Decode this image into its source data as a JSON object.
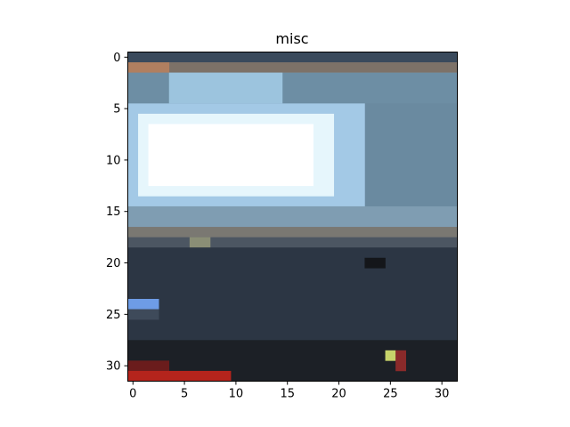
{
  "chart_data": {
    "type": "heatmap",
    "title": "misc",
    "xlabel": "",
    "ylabel": "",
    "grid": false,
    "rows": 32,
    "cols": 32,
    "xticks": [
      0,
      5,
      10,
      15,
      20,
      25,
      30
    ],
    "yticks": [
      0,
      5,
      10,
      15,
      20,
      25,
      30
    ],
    "xlim": [
      -0.5,
      31.5
    ],
    "ylim": [
      31.5,
      -0.5
    ],
    "image_regions": [
      {
        "rows": [
          0,
          0
        ],
        "cols": [
          0,
          31
        ],
        "color": "#3a4a5c"
      },
      {
        "rows": [
          1,
          1
        ],
        "cols": [
          0,
          31
        ],
        "color": "#7d7268"
      },
      {
        "rows": [
          1,
          1
        ],
        "cols": [
          0,
          3
        ],
        "color": "#b07f60"
      },
      {
        "rows": [
          2,
          4
        ],
        "cols": [
          0,
          31
        ],
        "color": "#6d8ea4"
      },
      {
        "rows": [
          2,
          4
        ],
        "cols": [
          4,
          14
        ],
        "color": "#9cc4de"
      },
      {
        "rows": [
          5,
          16
        ],
        "cols": [
          0,
          31
        ],
        "color": "#6a8aa0"
      },
      {
        "rows": [
          5,
          14
        ],
        "cols": [
          0,
          22
        ],
        "color": "#a3c9e6"
      },
      {
        "rows": [
          6,
          13
        ],
        "cols": [
          1,
          19
        ],
        "color": "#e6f6fc"
      },
      {
        "rows": [
          7,
          12
        ],
        "cols": [
          2,
          17
        ],
        "color": "#ffffff"
      },
      {
        "rows": [
          15,
          16
        ],
        "cols": [
          0,
          31
        ],
        "color": "#7f9db2"
      },
      {
        "rows": [
          17,
          17
        ],
        "cols": [
          0,
          31
        ],
        "color": "#7a7872"
      },
      {
        "rows": [
          18,
          18
        ],
        "cols": [
          0,
          31
        ],
        "color": "#4c5662"
      },
      {
        "rows": [
          18,
          18
        ],
        "cols": [
          6,
          7
        ],
        "color": "#8a8e76"
      },
      {
        "rows": [
          19,
          27
        ],
        "cols": [
          0,
          31
        ],
        "color": "#2c3644"
      },
      {
        "rows": [
          20,
          20
        ],
        "cols": [
          23,
          24
        ],
        "color": "#14161a"
      },
      {
        "rows": [
          24,
          24
        ],
        "cols": [
          0,
          2
        ],
        "color": "#6e9ce6"
      },
      {
        "rows": [
          25,
          25
        ],
        "cols": [
          0,
          2
        ],
        "color": "#3e4a5a"
      },
      {
        "rows": [
          28,
          31
        ],
        "cols": [
          0,
          31
        ],
        "color": "#1c2026"
      },
      {
        "rows": [
          29,
          29
        ],
        "cols": [
          25,
          25
        ],
        "color": "#c7d36a"
      },
      {
        "rows": [
          29,
          30
        ],
        "cols": [
          26,
          26
        ],
        "color": "#8a2a2a"
      },
      {
        "rows": [
          30,
          30
        ],
        "cols": [
          0,
          3
        ],
        "color": "#6a1c1c"
      },
      {
        "rows": [
          31,
          31
        ],
        "cols": [
          0,
          9
        ],
        "color": "#b4241c"
      }
    ]
  }
}
